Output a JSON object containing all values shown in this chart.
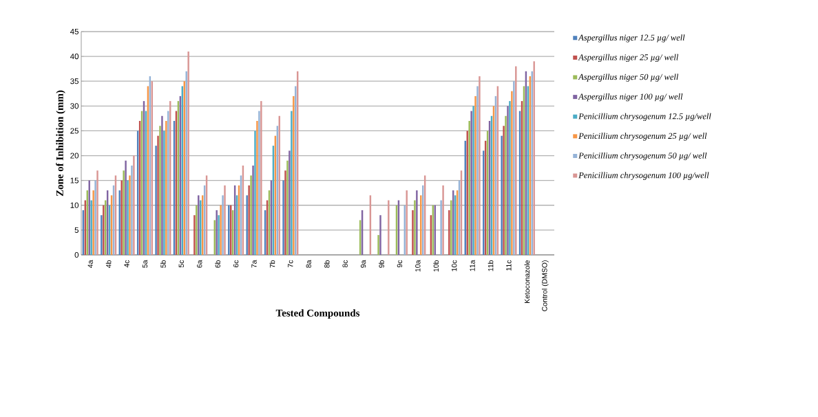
{
  "chart_data": {
    "type": "bar",
    "ylabel": "Zone of Inhibition (mm)",
    "xlabel": "Tested Compounds",
    "categories": [
      "4a",
      "4b",
      "4c",
      "5a",
      "5b",
      "5c",
      "6a",
      "6b",
      "6c",
      "7a",
      "7b",
      "7c",
      "8a",
      "8b",
      "8c",
      "9a",
      "9b",
      "9c",
      "10a",
      "10b",
      "10c",
      "11a",
      "11b",
      "11c",
      "Ketoconazole",
      "Control (DMSO)"
    ],
    "ylim": [
      0,
      45
    ],
    "yticks": [
      0,
      5,
      10,
      15,
      20,
      25,
      30,
      35,
      40,
      45
    ],
    "grid": "y",
    "legend": "right",
    "series": [
      {
        "name": "*Aspergillus niger 12.5 µg/ well*",
        "color": "#4f81bd",
        "values": [
          9,
          8,
          13,
          25,
          22,
          27,
          0,
          0,
          10,
          12,
          9,
          15,
          0,
          0,
          0,
          0,
          0,
          0,
          0,
          0,
          0,
          23,
          21,
          24,
          29,
          0
        ]
      },
      {
        "name": "*Aspergillus niger 25 µg/ well*",
        "color": "#c0504d",
        "values": [
          11,
          10,
          15,
          27,
          24,
          29,
          8,
          0,
          10,
          14,
          11,
          17,
          0,
          0,
          0,
          0,
          0,
          0,
          9,
          8,
          9,
          25,
          23,
          26,
          31,
          0
        ]
      },
      {
        "name": "*Aspergillus niger 50 µg/ well*",
        "color": "#9bbb59",
        "values": [
          13,
          11,
          17,
          29,
          26,
          31,
          10,
          7,
          9,
          16,
          13,
          19,
          0,
          0,
          0,
          7,
          4,
          10,
          11,
          10,
          11,
          27,
          25,
          28,
          34,
          0
        ]
      },
      {
        "name": "*Aspergillus niger 100 µg/ well*",
        "color": "#8064a2",
        "values": [
          15,
          13,
          19,
          31,
          28,
          32,
          12,
          9,
          14,
          18,
          15,
          21,
          0,
          0,
          0,
          9,
          8,
          11,
          13,
          10,
          13,
          29,
          27,
          30,
          37,
          0
        ]
      },
      {
        "name": "*Penicillium chrysogenum 12.5 µg/well*",
        "color": "#4bacc6",
        "values": [
          11,
          10,
          15,
          29,
          25,
          34,
          11,
          8,
          12,
          25,
          22,
          29,
          0,
          0,
          0,
          0,
          0,
          0,
          0,
          0,
          12,
          30,
          28,
          31,
          34,
          0
        ]
      },
      {
        "name": "*Penicillium chrysogenum 25 µg/ well*",
        "color": "#f79646",
        "values": [
          13,
          12,
          16,
          34,
          27,
          35,
          12,
          10,
          14,
          27,
          24,
          32,
          0,
          0,
          0,
          0,
          0,
          0,
          12,
          0,
          13,
          32,
          30,
          33,
          36,
          0
        ]
      },
      {
        "name": "*Penicillium chrysogenum 50 µg/ well*",
        "color": "#95b3d7",
        "values": [
          15,
          14,
          18,
          36,
          29,
          37,
          14,
          12,
          16,
          29,
          26,
          34,
          0,
          0,
          0,
          0,
          0,
          10,
          14,
          11,
          15,
          34,
          32,
          35,
          37,
          0
        ]
      },
      {
        "name": "*Penicillium chrysogenum 100 µg/well*",
        "color": "#d99694",
        "values": [
          17,
          16,
          20,
          35,
          31,
          41,
          16,
          14,
          18,
          31,
          28,
          37,
          0,
          0,
          0,
          12,
          11,
          13,
          16,
          14,
          17,
          36,
          34,
          38,
          39,
          0
        ]
      }
    ]
  }
}
